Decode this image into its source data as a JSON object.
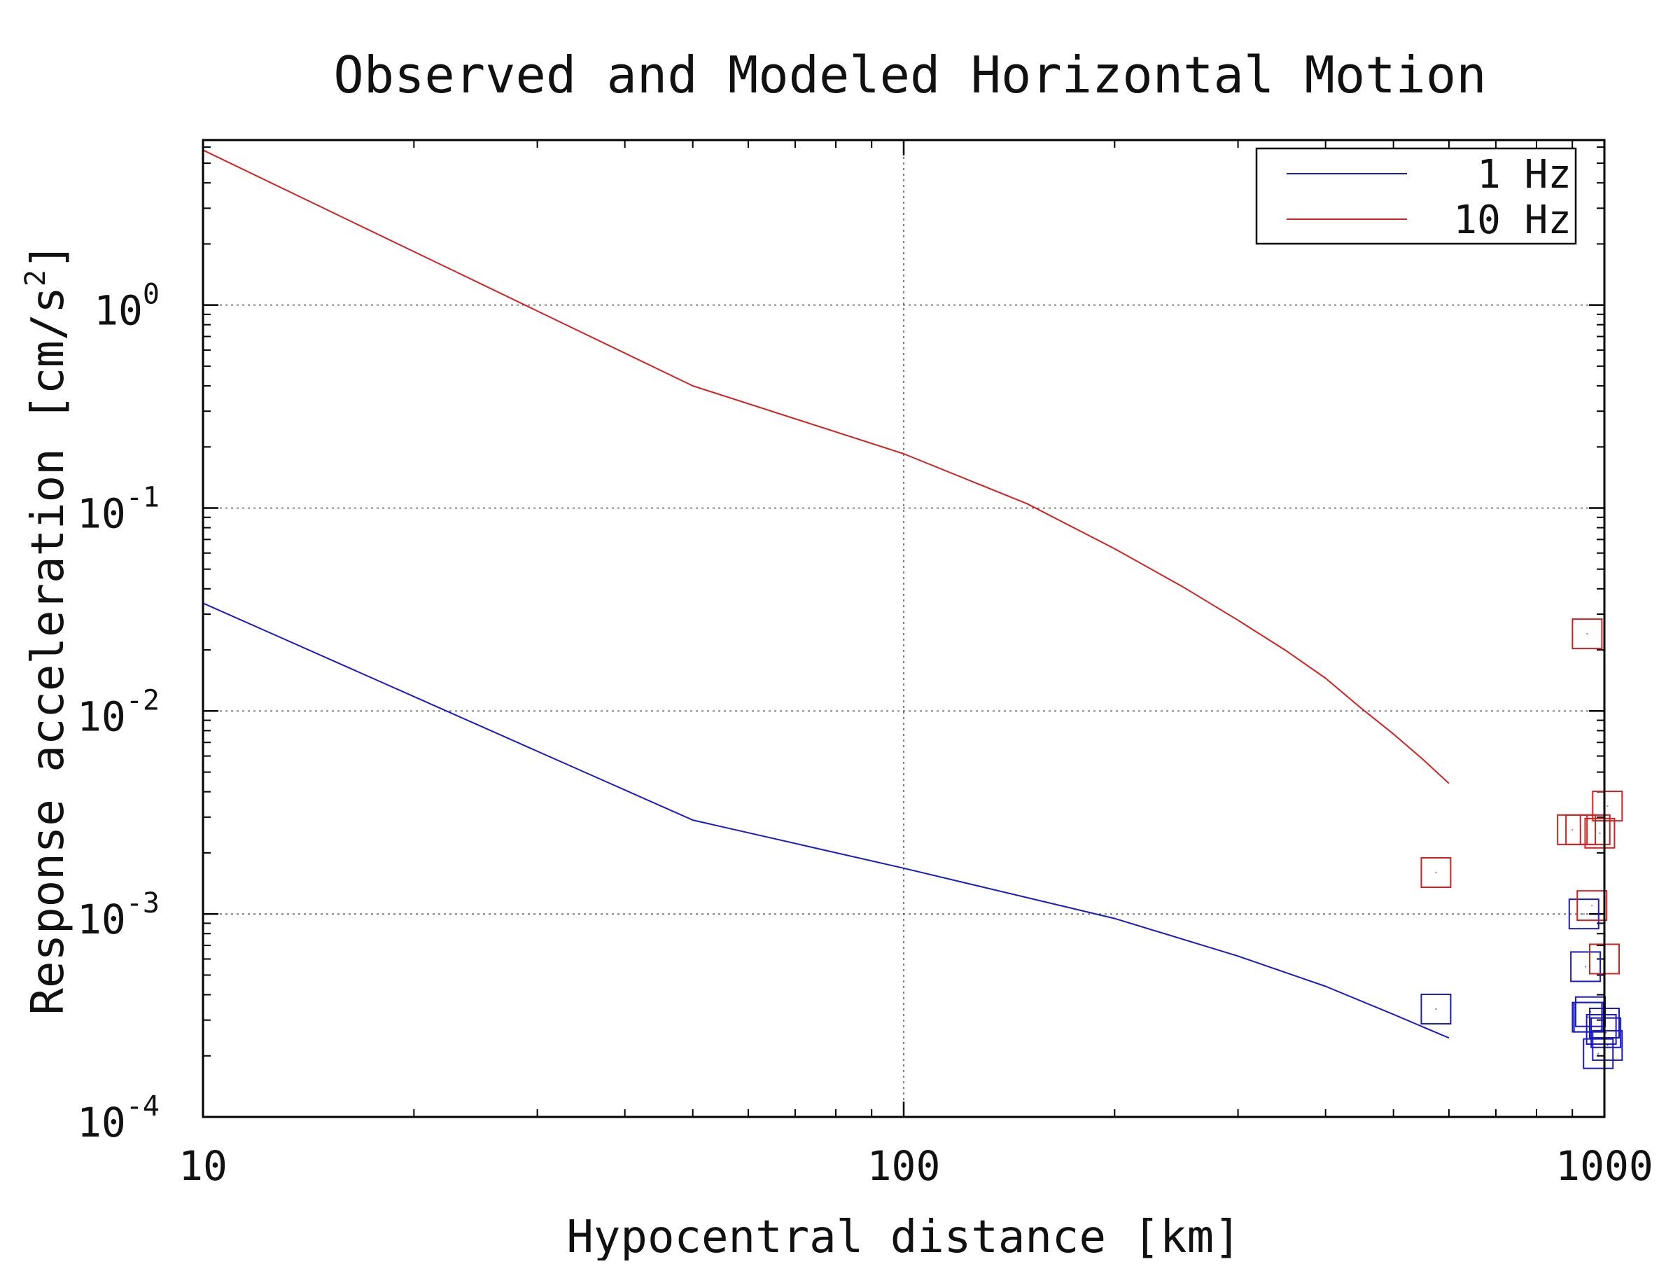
{
  "chart_data": {
    "type": "line",
    "title": "Observed and Modeled Horizontal Motion",
    "xlabel": "Hypocentral distance [km]",
    "ylabel": "Response acceleration [cm/s2]",
    "ylabel_parts": {
      "main": "Response acceleration [cm/s",
      "sup": "2",
      "end": "]"
    },
    "x_scale": "log",
    "y_scale": "log",
    "xlim": [
      10,
      1000
    ],
    "ylim": [
      0.0001,
      6.5
    ],
    "x_ticks": [
      {
        "value": 10,
        "label": "10"
      },
      {
        "value": 100,
        "label": "100"
      },
      {
        "value": 1000,
        "label": "1000"
      }
    ],
    "y_ticks": [
      {
        "value": 0.0001,
        "base": "10",
        "exp": "-4"
      },
      {
        "value": 0.001,
        "base": "10",
        "exp": "-3"
      },
      {
        "value": 0.01,
        "base": "10",
        "exp": "-2"
      },
      {
        "value": 0.1,
        "base": "10",
        "exp": "-1"
      },
      {
        "value": 1,
        "base": "10",
        "exp": "0"
      }
    ],
    "grid": true,
    "legend_position": "top-right",
    "series": [
      {
        "name": "1 Hz",
        "color": "#1a1acc",
        "x": [
          10,
          50,
          100,
          200,
          300,
          400,
          500,
          600
        ],
        "y": [
          0.034,
          0.0029,
          0.00168,
          0.00095,
          0.00062,
          0.00044,
          0.00032,
          0.000245
        ]
      },
      {
        "name": "10 Hz",
        "color": "#d42020",
        "x": [
          10,
          50,
          100,
          150,
          200,
          250,
          300,
          350,
          400,
          450,
          500,
          550,
          600
        ],
        "y": [
          5.8,
          0.4,
          0.185,
          0.105,
          0.063,
          0.041,
          0.028,
          0.02,
          0.0145,
          0.0103,
          0.0077,
          0.0058,
          0.0044
        ]
      }
    ],
    "observed": [
      {
        "series": "1 Hz",
        "color": "#1a1acc",
        "marker": "square",
        "x": [
          575,
          935,
          940,
          945,
          950,
          955,
          990,
          1000,
          980,
          1005,
          1010
        ],
        "y": [
          0.00034,
          0.001,
          0.00055,
          0.00031,
          0.00031,
          0.00033,
          0.00027,
          0.00029,
          0.000205,
          0.00026,
          0.000225
        ]
      },
      {
        "series": "10 Hz",
        "color": "#d42020",
        "marker": "square",
        "x": [
          575,
          945,
          900,
          925,
          970,
          985,
          1010,
          960,
          1000
        ],
        "y": [
          0.0016,
          0.024,
          0.0026,
          0.0026,
          0.0026,
          0.0025,
          0.0034,
          0.0011,
          0.0006
        ]
      }
    ]
  }
}
